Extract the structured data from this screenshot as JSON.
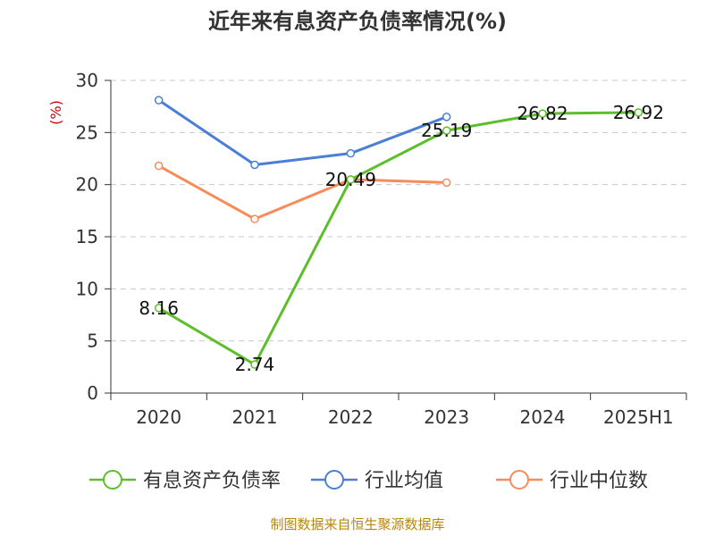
{
  "chart_data": {
    "type": "line",
    "title": "近年来有息资产负债率情况(%)",
    "ylabel": "(%)",
    "categories": [
      "2020",
      "2021",
      "2022",
      "2023",
      "2024",
      "2025H1"
    ],
    "ylim": [
      0,
      30
    ],
    "yticks": [
      "0",
      "5",
      "10",
      "15",
      "20",
      "25",
      "30"
    ],
    "grid": true,
    "legend_position": "bottom",
    "series": [
      {
        "name": "有息资产负债率",
        "color": "#5cbf2a",
        "values": [
          8.16,
          2.74,
          20.49,
          25.19,
          26.82,
          26.92
        ],
        "labels": [
          "8.16",
          "2.74",
          "20.49",
          "25.19",
          "26.82",
          "26.92"
        ]
      },
      {
        "name": "行业均值",
        "color": "#4a7fd6",
        "values": [
          28.1,
          21.9,
          23.0,
          26.5,
          null,
          null
        ]
      },
      {
        "name": "行业中位数",
        "color": "#f58c5a",
        "values": [
          21.8,
          16.7,
          20.5,
          20.2,
          null,
          null
        ]
      }
    ],
    "source": "制图数据来自恒生聚源数据库"
  }
}
